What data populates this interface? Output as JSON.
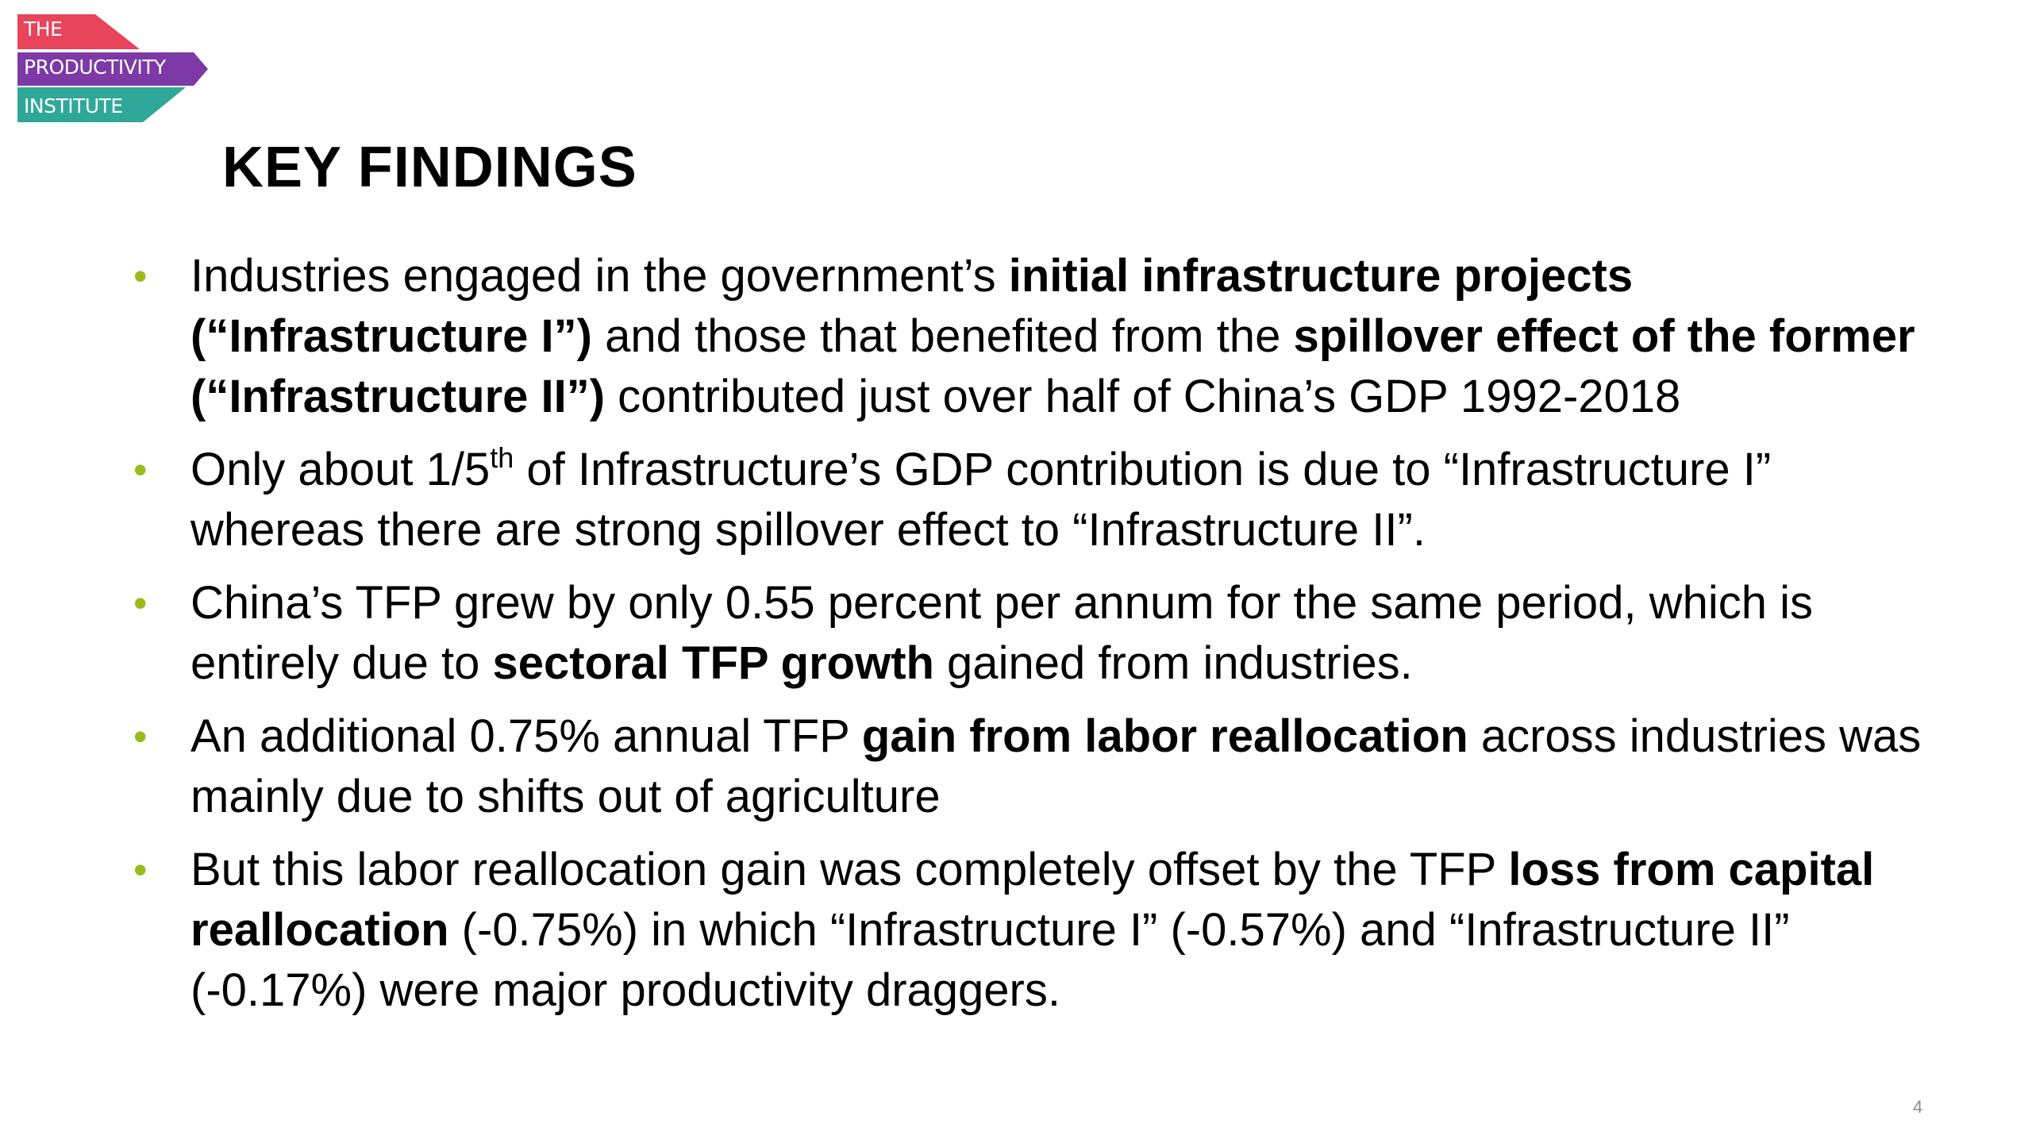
{
  "logo": {
    "line1": "THE",
    "line2": "PRODUCTIVITY",
    "line3": "INSTITUTE",
    "colors": {
      "top": "#e8445a",
      "middle": "#7d3aa6",
      "bottom": "#2fa89a"
    }
  },
  "slide": {
    "title": "KEY FINDINGS",
    "page_number": "4",
    "bullet_color": "#9bbb1c"
  },
  "findings": [
    {
      "t1": "Industries engaged in the government’s ",
      "b1": "initial infrastructure projects (“Infrastructure I”)",
      "t2": " and those that benefited from the ",
      "b2": "spillover effect of the former (“Infrastructure II”)",
      "t3": " contributed just over half of China’s GDP 1992-2018"
    },
    {
      "t1": "Only about 1/5",
      "sup": "th",
      "t2": " of Infrastructure’s GDP contribution is due to “Infrastructure I” whereas there are strong spillover effect to “Infrastructure II”."
    },
    {
      "t1": "China’s TFP grew by only 0.55 percent per annum for the same period, which is entirely due to ",
      "b1": "sectoral TFP growth",
      "t2": " gained from industries."
    },
    {
      "t1": "An additional 0.75% annual TFP ",
      "b1": "gain from labor reallocation",
      "t2": " across industries was mainly due to shifts out of agriculture"
    },
    {
      "t1": "But this labor reallocation gain was completely offset by the TFP ",
      "b1": "loss from capital reallocation",
      "t2": " (-0.75%) in which “Infrastructure I” (-0.57%) and “Infrastructure II” (-0.17%) were major productivity draggers."
    }
  ]
}
